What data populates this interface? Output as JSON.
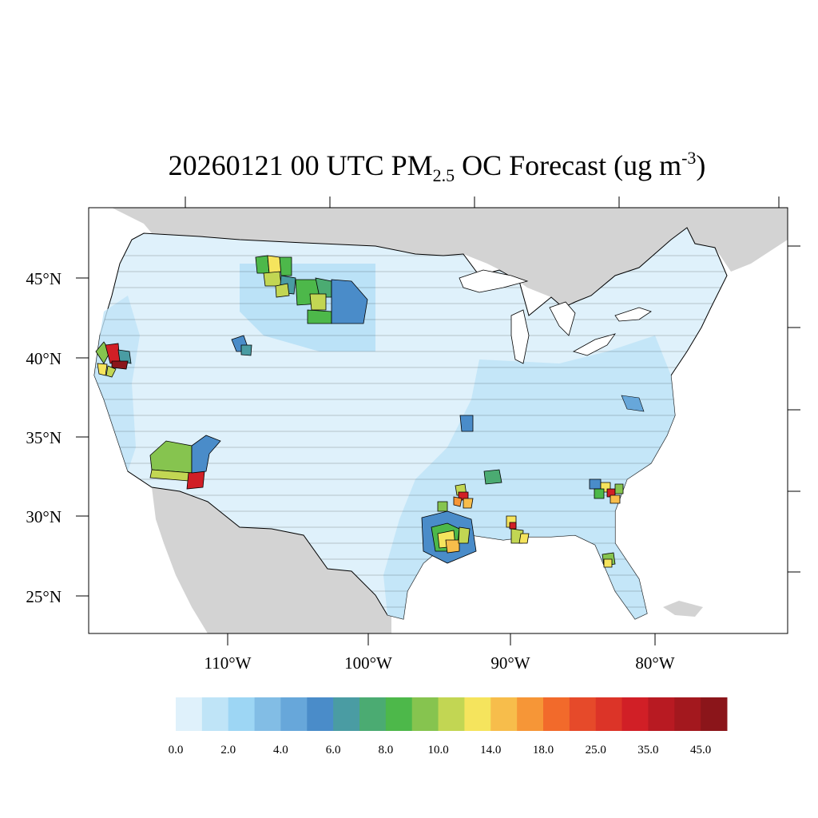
{
  "title": {
    "prefix": "20260121 00 UTC PM",
    "subscript": "2.5",
    "middle": " OC Forecast (ug m",
    "superscript": "-3",
    "suffix": ")"
  },
  "axes": {
    "latitude_labels": [
      "45°N",
      "40°N",
      "35°N",
      "30°N",
      "25°N"
    ],
    "longitude_labels": [
      "110°W",
      "100°W",
      "90°W",
      "80°W"
    ]
  },
  "map": {
    "region": "Contiguous United States",
    "land_outside_color": "#d3d3d3",
    "ocean_color": "#ffffff",
    "county_border_color": "#000000",
    "hotspots": [
      {
        "label": "N. California",
        "level": "25.0-45.0"
      },
      {
        "label": "S. Arizona",
        "level": "10.0-35.0"
      },
      {
        "label": "Montana / Dakotas",
        "level": "8.0-14.0"
      },
      {
        "label": "E. Texas / Louisiana",
        "level": "10.0-35.0"
      },
      {
        "label": "Georgia / S. Carolina",
        "level": "10.0-35.0"
      },
      {
        "label": "Mississippi",
        "level": "10.0-25.0"
      },
      {
        "label": "Florida",
        "level": "8.0-14.0"
      }
    ]
  },
  "colorbar": {
    "colors": [
      "#dff1fb",
      "#bfe4f7",
      "#9dd6f4",
      "#82bde5",
      "#67a7da",
      "#4a8cc9",
      "#4a9ca3",
      "#4bab72",
      "#4db84a",
      "#86c44f",
      "#c2d653",
      "#f5e45d",
      "#f7bd4b",
      "#f69637",
      "#f26a2b",
      "#e64a2a",
      "#dc3428",
      "#d11f26",
      "#b81a22",
      "#a3181e",
      "#8b151a"
    ],
    "labels": [
      "0.0",
      "2.0",
      "4.0",
      "6.0",
      "8.0",
      "10.0",
      "14.0",
      "18.0",
      "25.0",
      "35.0",
      "45.0"
    ]
  }
}
